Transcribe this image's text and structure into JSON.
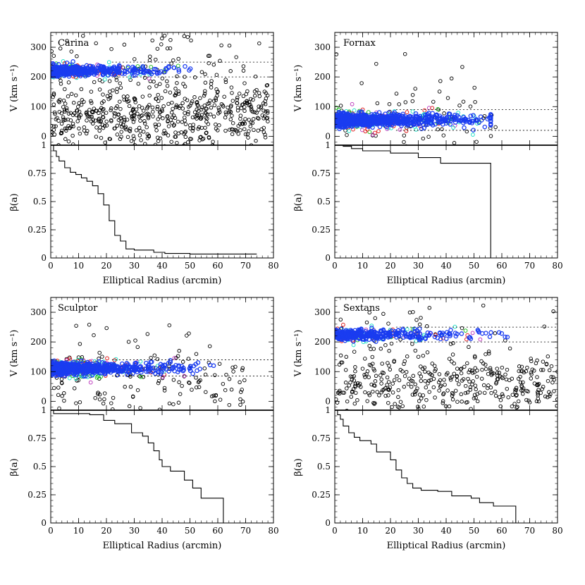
{
  "colors": {
    "member": "#1a3cf0",
    "nonmember": "#000000",
    "cyan": "#22e0c8",
    "green": "#22c022",
    "red": "#e02020",
    "magenta": "#c040c0"
  },
  "chart_data": [
    {
      "type": "scatter",
      "panel": "top-left",
      "name": "Carina",
      "title": "Carina",
      "xlabel": "Elliptical Radius (arcmin)",
      "ylabel": "V (km s⁻¹)",
      "beta_ylabel": "β(a)",
      "xlim": [
        0,
        80
      ],
      "ylim": [
        -30,
        350
      ],
      "x_ticks": [
        0,
        10,
        20,
        30,
        40,
        50,
        60,
        70,
        80
      ],
      "y_ticks": [
        0,
        100,
        200,
        300
      ],
      "beta_ticks": [
        0,
        0.25,
        0.5,
        0.75,
        1
      ],
      "member_band": [
        200,
        250
      ],
      "member_velocity": 222,
      "member_spread": 8,
      "member_xmax": 72,
      "member_xscale": 12,
      "field_vrange": [
        -20,
        340
      ],
      "field_vcenter": 70,
      "field_xmax": 78,
      "field_count": 640,
      "member_count": 420,
      "seed": 11,
      "beta_step": [
        [
          0,
          1
        ],
        [
          1,
          0.95
        ],
        [
          2,
          0.9
        ],
        [
          3,
          0.86
        ],
        [
          5,
          0.8
        ],
        [
          7,
          0.76
        ],
        [
          9,
          0.74
        ],
        [
          11,
          0.71
        ],
        [
          13,
          0.68
        ],
        [
          15,
          0.64
        ],
        [
          17,
          0.57
        ],
        [
          19,
          0.47
        ],
        [
          21,
          0.33
        ],
        [
          23,
          0.2
        ],
        [
          25,
          0.15
        ],
        [
          27,
          0.08
        ],
        [
          30,
          0.07
        ],
        [
          37,
          0.05
        ],
        [
          41,
          0.04
        ],
        [
          50,
          0.035
        ],
        [
          74,
          0.035
        ]
      ]
    },
    {
      "type": "scatter",
      "panel": "top-right",
      "name": "Fornax",
      "title": "Fornax",
      "xlabel": "Elliptical Radius (arcmin)",
      "ylabel": "V (km s⁻¹)",
      "beta_ylabel": "β(a)",
      "xlim": [
        0,
        80
      ],
      "ylim": [
        -30,
        350
      ],
      "x_ticks": [
        0,
        10,
        20,
        30,
        40,
        50,
        60,
        70,
        80
      ],
      "y_ticks": [
        0,
        100,
        200,
        300
      ],
      "beta_ticks": [
        0,
        0.25,
        0.5,
        0.75,
        1
      ],
      "member_band": [
        20,
        90
      ],
      "member_velocity": 55,
      "member_spread": 10,
      "member_xmax": 56,
      "member_xscale": 16,
      "field_vrange": [
        -20,
        280
      ],
      "field_vcenter": 60,
      "field_xmax": 60,
      "field_count": 70,
      "member_count": 900,
      "seed": 23,
      "beta_step": [
        [
          0,
          1
        ],
        [
          3,
          0.99
        ],
        [
          6,
          0.97
        ],
        [
          10,
          0.95
        ],
        [
          20,
          0.93
        ],
        [
          30,
          0.89
        ],
        [
          38,
          0.84
        ],
        [
          55,
          0.84
        ],
        [
          56,
          0
        ]
      ]
    },
    {
      "type": "scatter",
      "panel": "bottom-left",
      "name": "Sculptor",
      "title": "Sculptor",
      "xlabel": "Elliptical Radius (arcmin)",
      "ylabel": "V (km s⁻¹)",
      "beta_ylabel": "β(a)",
      "xlim": [
        0,
        80
      ],
      "ylim": [
        -30,
        350
      ],
      "x_ticks": [
        0,
        10,
        20,
        30,
        40,
        50,
        60,
        70,
        80
      ],
      "y_ticks": [
        0,
        100,
        200,
        300
      ],
      "beta_ticks": [
        0,
        0.25,
        0.5,
        0.75,
        1
      ],
      "member_band": [
        85,
        140
      ],
      "member_velocity": 111,
      "member_spread": 9,
      "member_xmax": 66,
      "member_xscale": 14,
      "field_vrange": [
        -20,
        260
      ],
      "field_vcenter": 60,
      "field_xmax": 70,
      "field_count": 160,
      "member_count": 800,
      "seed": 37,
      "beta_step": [
        [
          0,
          1
        ],
        [
          1,
          0.97
        ],
        [
          14,
          0.96
        ],
        [
          19,
          0.91
        ],
        [
          23,
          0.88
        ],
        [
          29,
          0.8
        ],
        [
          33,
          0.77
        ],
        [
          35,
          0.71
        ],
        [
          37,
          0.64
        ],
        [
          39,
          0.56
        ],
        [
          40,
          0.5
        ],
        [
          43,
          0.46
        ],
        [
          48,
          0.38
        ],
        [
          51,
          0.31
        ],
        [
          54,
          0.22
        ],
        [
          61,
          0.22
        ],
        [
          62,
          0
        ]
      ]
    },
    {
      "type": "scatter",
      "panel": "bottom-right",
      "name": "Sextans",
      "title": "Sextans",
      "xlabel": "Elliptical Radius (arcmin)",
      "ylabel": "V (km s⁻¹)",
      "beta_ylabel": "β(a)",
      "xlim": [
        0,
        80
      ],
      "ylim": [
        -30,
        350
      ],
      "x_ticks": [
        0,
        10,
        20,
        30,
        40,
        50,
        60,
        70,
        80
      ],
      "y_ticks": [
        0,
        100,
        200,
        300
      ],
      "beta_ticks": [
        0,
        0.25,
        0.5,
        0.75,
        1
      ],
      "member_band": [
        200,
        250
      ],
      "member_velocity": 224,
      "member_spread": 8,
      "member_xmax": 62,
      "member_xscale": 15,
      "field_vrange": [
        -20,
        330
      ],
      "field_vcenter": 60,
      "field_xmax": 80,
      "field_count": 420,
      "member_count": 380,
      "seed": 53,
      "beta_step": [
        [
          0,
          1
        ],
        [
          1,
          0.96
        ],
        [
          2,
          0.92
        ],
        [
          3,
          0.86
        ],
        [
          5,
          0.8
        ],
        [
          7,
          0.76
        ],
        [
          9,
          0.73
        ],
        [
          13,
          0.7
        ],
        [
          15,
          0.63
        ],
        [
          20,
          0.56
        ],
        [
          22,
          0.47
        ],
        [
          24,
          0.4
        ],
        [
          26,
          0.35
        ],
        [
          28,
          0.31
        ],
        [
          31,
          0.29
        ],
        [
          37,
          0.28
        ],
        [
          42,
          0.24
        ],
        [
          49,
          0.22
        ],
        [
          52,
          0.18
        ],
        [
          57,
          0.15
        ],
        [
          64,
          0.15
        ],
        [
          65,
          0
        ]
      ]
    }
  ]
}
